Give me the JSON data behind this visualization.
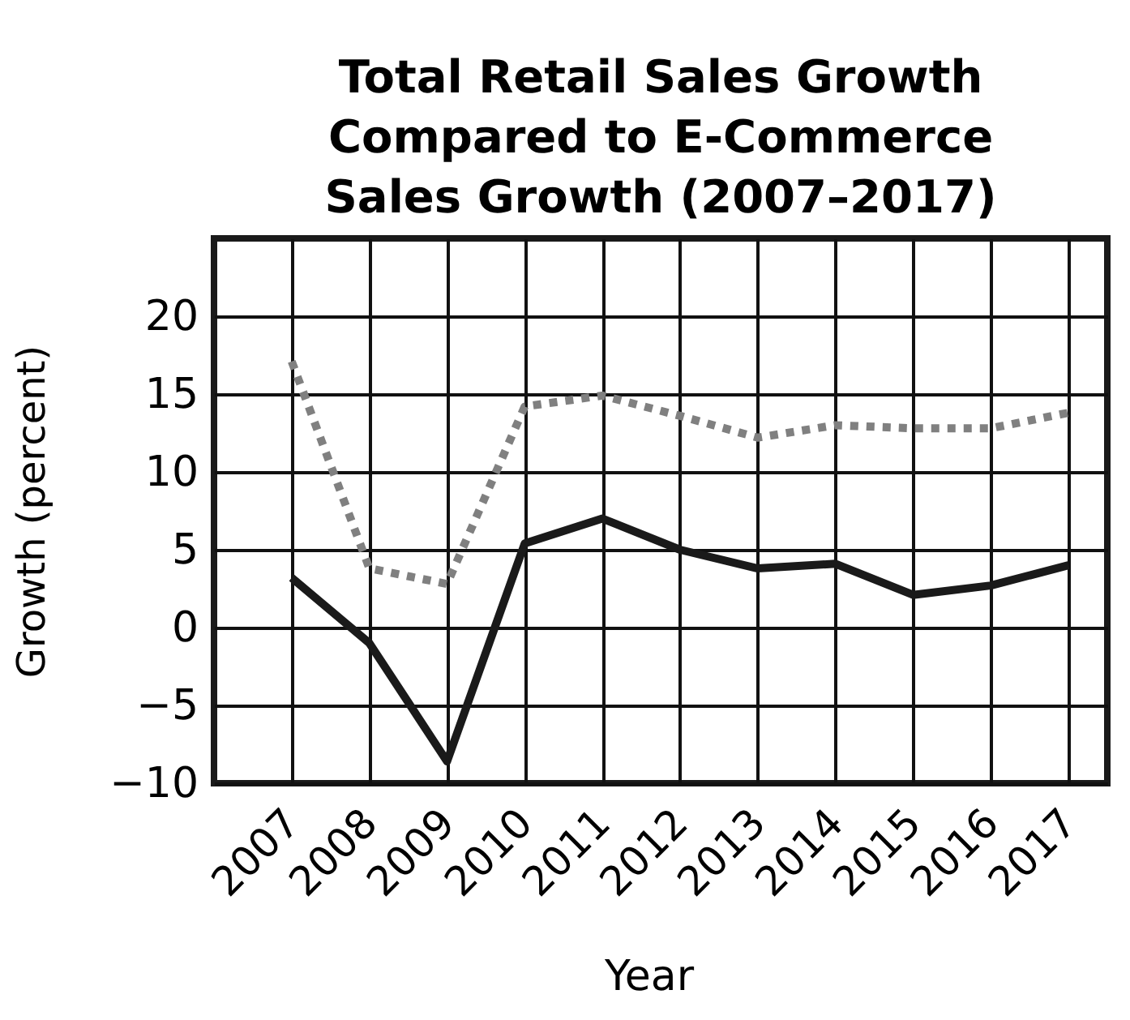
{
  "chart_data": {
    "type": "line",
    "title": "Total Retail Sales Growth Compared to E-Commerce Sales Growth (2007–2017)",
    "xlabel": "Year",
    "ylabel": "Growth (percent)",
    "x": [
      2007,
      2008,
      2009,
      2010,
      2011,
      2012,
      2013,
      2014,
      2015,
      2016,
      2017
    ],
    "series": [
      {
        "color": "#808080",
        "line_style": "dotted",
        "values": [
          17.1,
          3.8,
          2.8,
          14.2,
          14.9,
          13.6,
          12.2,
          13.0,
          12.8,
          12.8,
          13.8
        ]
      },
      {
        "color": "#1a1a1a",
        "line_style": "solid",
        "values": [
          3.2,
          -1.0,
          -8.6,
          5.4,
          7.0,
          5.0,
          3.8,
          4.1,
          2.1,
          2.7,
          4.0
        ]
      }
    ],
    "xlim": [
      2006,
      2017.5
    ],
    "xticks": [
      2007,
      2008,
      2009,
      2010,
      2011,
      2012,
      2013,
      2014,
      2015,
      2016,
      2017
    ],
    "ylim": [
      -10,
      25
    ],
    "yticks": [
      -10,
      -5,
      0,
      5,
      10,
      15,
      20
    ],
    "grid": true,
    "marker": "none"
  }
}
